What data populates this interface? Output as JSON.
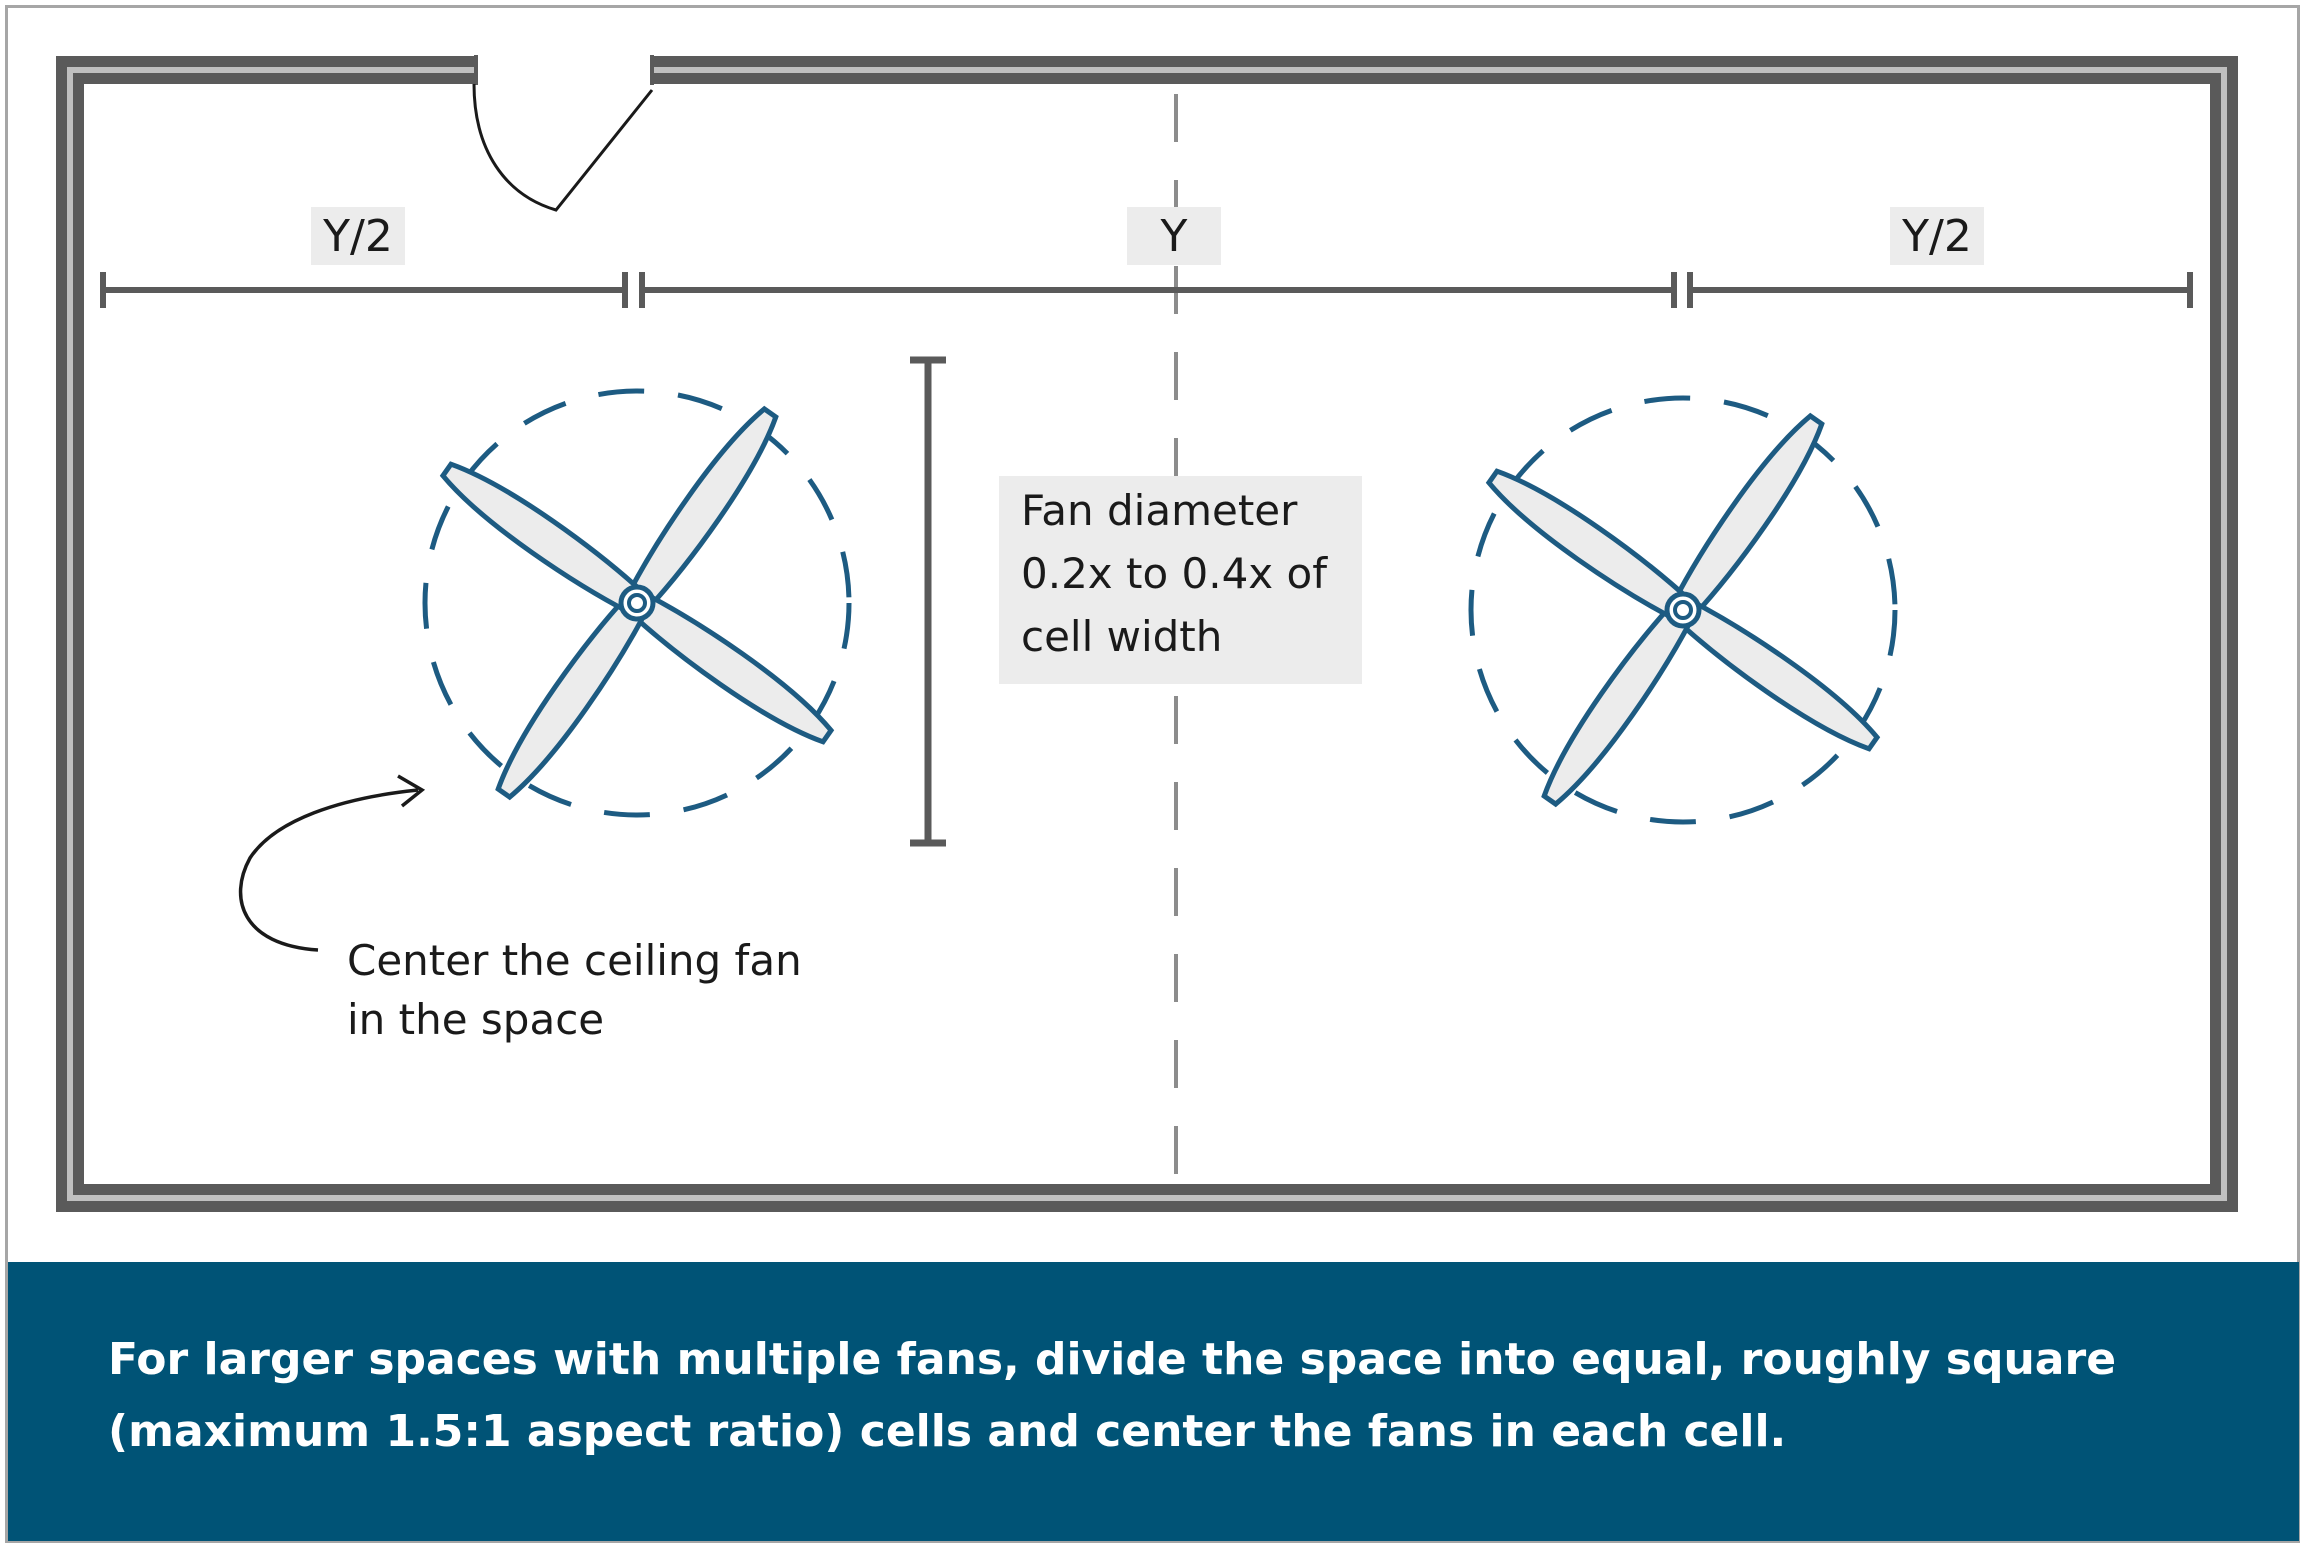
{
  "dimensions": {
    "left_half": "Y/2",
    "middle": "Y",
    "right_half": "Y/2"
  },
  "fan_diameter_note": {
    "lines": [
      "Fan diameter",
      "0.2x to 0.4x of",
      "cell width"
    ]
  },
  "center_note": {
    "lines": [
      "Center the ceiling fan",
      "in the space"
    ]
  },
  "footer": {
    "lines": [
      "For larger spaces with multiple fans, divide the space into equal, roughly square",
      "(maximum 1.5:1 aspect ratio) cells and center the fans in each cell."
    ]
  },
  "colors": {
    "wall": "#5a5a5a",
    "fan_blue": "#1d5b82",
    "blade_fill": "#ececec",
    "label_bg": "#ececec",
    "footer_bg": "#005376",
    "footer_text": "#ffffff"
  }
}
